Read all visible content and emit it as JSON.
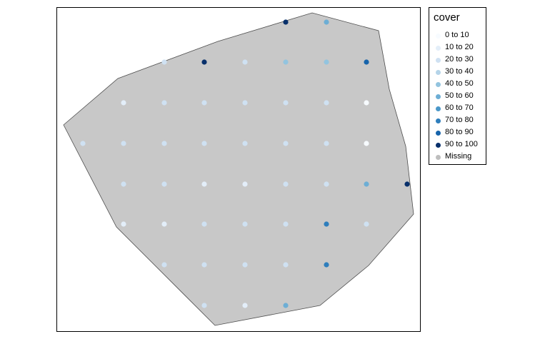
{
  "legend": {
    "title": "cover",
    "items": [
      {
        "label": "0 to 10",
        "color": "#f7fbff"
      },
      {
        "label": "10 to 20",
        "color": "#e3eef9"
      },
      {
        "label": "20 to 30",
        "color": "#cfe1f2"
      },
      {
        "label": "30 to 40",
        "color": "#b5d4e9"
      },
      {
        "label": "40 to 50",
        "color": "#93c4df"
      },
      {
        "label": "50 to 60",
        "color": "#6daed5"
      },
      {
        "label": "60 to 70",
        "color": "#4a97c9"
      },
      {
        "label": "70 to 80",
        "color": "#2e7ebc"
      },
      {
        "label": "80 to 90",
        "color": "#1764ab"
      },
      {
        "label": "90 to 100",
        "color": "#08306b"
      },
      {
        "label": "Missing",
        "color": "#bebebe"
      }
    ]
  },
  "map": {
    "polygon_fill": "#c8c8c8",
    "polygon_stroke": "#4d4d4d"
  }
}
